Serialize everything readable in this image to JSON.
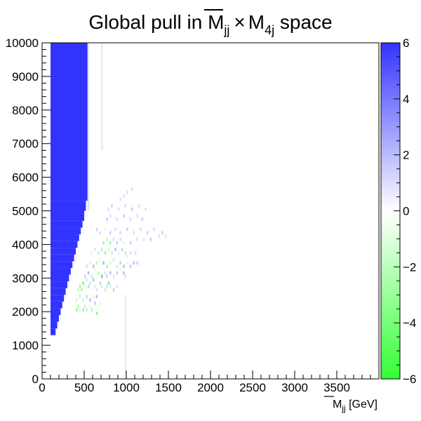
{
  "chart_data": {
    "type": "heatmap",
    "title": {
      "prefix": "Global pull in ",
      "mjj_main": "M",
      "mjj_sub": "jj",
      "times": "×",
      "m4j_main": "M",
      "m4j_sub": "4j",
      "suffix": " space"
    },
    "xlabel": {
      "main": "M",
      "sub": "jj",
      "unit": " [GeV]"
    },
    "ylabel": "",
    "xlim": [
      0,
      4000
    ],
    "ylim": [
      0,
      10000
    ],
    "x_ticks": [
      "0",
      "500",
      "1000",
      "1500",
      "2000",
      "2500",
      "3000",
      "3500"
    ],
    "x_tick_values": [
      0,
      500,
      1000,
      1500,
      2000,
      2500,
      3000,
      3500
    ],
    "y_ticks": [
      "0",
      "1000",
      "2000",
      "3000",
      "4000",
      "5000",
      "6000",
      "7000",
      "8000",
      "9000",
      "10000"
    ],
    "y_tick_values": [
      0,
      1000,
      2000,
      3000,
      4000,
      5000,
      6000,
      7000,
      8000,
      9000,
      10000
    ],
    "z_range": [
      -6,
      6
    ],
    "z_ticks": [
      "6",
      "4",
      "2",
      "0",
      "−2",
      "−4",
      "−6"
    ],
    "z_tick_values": [
      6,
      4,
      2,
      0,
      -2,
      -4,
      -6
    ],
    "colorscale": [
      {
        "z": -6,
        "color": "#33ff33"
      },
      {
        "z": 0,
        "color": "#ffffff"
      },
      {
        "z": 6,
        "color": "#3333ff"
      }
    ],
    "bin_size": {
      "x": 20,
      "y": 100
    },
    "saturated_region": {
      "z": 6,
      "x_start": 100,
      "boundary": [
        {
          "y_from": 1300,
          "x_end": 160
        },
        {
          "y_from": 1500,
          "x_end": 180
        },
        {
          "y_from": 1700,
          "x_end": 200
        },
        {
          "y_from": 1900,
          "x_end": 220
        },
        {
          "y_from": 2100,
          "x_end": 240
        },
        {
          "y_from": 2300,
          "x_end": 260
        },
        {
          "y_from": 2500,
          "x_end": 280
        },
        {
          "y_from": 2700,
          "x_end": 300
        },
        {
          "y_from": 2900,
          "x_end": 320
        },
        {
          "y_from": 3100,
          "x_end": 340
        },
        {
          "y_from": 3300,
          "x_end": 360
        },
        {
          "y_from": 3500,
          "x_end": 380
        },
        {
          "y_from": 3700,
          "x_end": 400
        },
        {
          "y_from": 3900,
          "x_end": 420
        },
        {
          "y_from": 4100,
          "x_end": 440
        },
        {
          "y_from": 4300,
          "x_end": 460
        },
        {
          "y_from": 4500,
          "x_end": 480
        },
        {
          "y_from": 4700,
          "x_end": 500
        },
        {
          "y_from": 5000,
          "x_end": 520
        },
        {
          "y_from": 5300,
          "x_end": 540
        },
        {
          "y_from": 10000,
          "x_end": 540
        }
      ]
    },
    "faint_bands": [
      {
        "x0": 540,
        "x1": 560,
        "y0": 5000,
        "y1": 10000,
        "z": 0.8
      },
      {
        "x0": 700,
        "x1": 720,
        "y0": 6800,
        "y1": 10000,
        "z": 0.7
      },
      {
        "x0": 980,
        "x1": 1000,
        "y0": 0,
        "y1": 2500,
        "z": 0.6
      }
    ],
    "cells": [
      {
        "x": 400,
        "y": 2000,
        "z": -3.5
      },
      {
        "x": 420,
        "y": 2100,
        "z": -2.5
      },
      {
        "x": 440,
        "y": 2000,
        "z": -1.5
      },
      {
        "x": 480,
        "y": 2000,
        "z": -3
      },
      {
        "x": 500,
        "y": 2100,
        "z": -2
      },
      {
        "x": 520,
        "y": 2000,
        "z": 1
      },
      {
        "x": 560,
        "y": 2100,
        "z": -1
      },
      {
        "x": 580,
        "y": 2000,
        "z": -2.5
      },
      {
        "x": 640,
        "y": 1900,
        "z": -3.5
      },
      {
        "x": 620,
        "y": 2200,
        "z": 1.5
      },
      {
        "x": 680,
        "y": 2200,
        "z": -1
      },
      {
        "x": 400,
        "y": 2300,
        "z": -1.5
      },
      {
        "x": 440,
        "y": 2400,
        "z": 1
      },
      {
        "x": 480,
        "y": 2300,
        "z": -2
      },
      {
        "x": 520,
        "y": 2400,
        "z": 1.5
      },
      {
        "x": 560,
        "y": 2300,
        "z": 2
      },
      {
        "x": 600,
        "y": 2400,
        "z": -1
      },
      {
        "x": 640,
        "y": 2400,
        "z": 2
      },
      {
        "x": 420,
        "y": 2600,
        "z": -2
      },
      {
        "x": 440,
        "y": 2700,
        "z": -3
      },
      {
        "x": 460,
        "y": 2600,
        "z": -2.5
      },
      {
        "x": 480,
        "y": 2800,
        "z": -4
      },
      {
        "x": 500,
        "y": 2700,
        "z": -1
      },
      {
        "x": 520,
        "y": 2900,
        "z": 1
      },
      {
        "x": 540,
        "y": 2700,
        "z": 1.5
      },
      {
        "x": 560,
        "y": 2800,
        "z": -2
      },
      {
        "x": 600,
        "y": 2900,
        "z": 2
      },
      {
        "x": 620,
        "y": 2700,
        "z": -1.5
      },
      {
        "x": 640,
        "y": 2600,
        "z": 1
      },
      {
        "x": 680,
        "y": 2800,
        "z": 1.5
      },
      {
        "x": 700,
        "y": 2700,
        "z": -2
      },
      {
        "x": 740,
        "y": 2600,
        "z": 1
      },
      {
        "x": 760,
        "y": 2700,
        "z": -2.5
      },
      {
        "x": 780,
        "y": 2800,
        "z": 2
      },
      {
        "x": 800,
        "y": 2700,
        "z": -1.5
      },
      {
        "x": 840,
        "y": 2600,
        "z": 1.5
      },
      {
        "x": 880,
        "y": 2700,
        "z": 1
      },
      {
        "x": 500,
        "y": 3000,
        "z": 1.5
      },
      {
        "x": 540,
        "y": 3100,
        "z": 2
      },
      {
        "x": 580,
        "y": 3000,
        "z": -2
      },
      {
        "x": 620,
        "y": 3200,
        "z": -1
      },
      {
        "x": 660,
        "y": 3100,
        "z": -2.5
      },
      {
        "x": 700,
        "y": 3000,
        "z": 2.5
      },
      {
        "x": 740,
        "y": 3100,
        "z": 1
      },
      {
        "x": 760,
        "y": 3000,
        "z": -3
      },
      {
        "x": 800,
        "y": 3100,
        "z": 2
      },
      {
        "x": 840,
        "y": 3000,
        "z": -2
      },
      {
        "x": 880,
        "y": 3100,
        "z": 1.5
      },
      {
        "x": 920,
        "y": 3200,
        "z": -1
      },
      {
        "x": 960,
        "y": 3100,
        "z": 2
      },
      {
        "x": 980,
        "y": 3000,
        "z": 1
      },
      {
        "x": 520,
        "y": 3300,
        "z": 1
      },
      {
        "x": 560,
        "y": 3400,
        "z": -1.5
      },
      {
        "x": 600,
        "y": 3300,
        "z": 2
      },
      {
        "x": 640,
        "y": 3400,
        "z": -2
      },
      {
        "x": 680,
        "y": 3500,
        "z": -1
      },
      {
        "x": 720,
        "y": 3400,
        "z": 2.5
      },
      {
        "x": 760,
        "y": 3300,
        "z": -3
      },
      {
        "x": 800,
        "y": 3400,
        "z": -1.5
      },
      {
        "x": 840,
        "y": 3500,
        "z": 1
      },
      {
        "x": 880,
        "y": 3300,
        "z": -2
      },
      {
        "x": 920,
        "y": 3400,
        "z": 1.5
      },
      {
        "x": 960,
        "y": 3300,
        "z": 2
      },
      {
        "x": 1000,
        "y": 3400,
        "z": -1
      },
      {
        "x": 1040,
        "y": 3300,
        "z": 1.5
      },
      {
        "x": 1080,
        "y": 3400,
        "z": 2
      },
      {
        "x": 1120,
        "y": 3400,
        "z": 1.5
      },
      {
        "x": 580,
        "y": 3700,
        "z": -1
      },
      {
        "x": 620,
        "y": 3800,
        "z": -2
      },
      {
        "x": 660,
        "y": 3700,
        "z": 1
      },
      {
        "x": 700,
        "y": 3800,
        "z": -2.5
      },
      {
        "x": 740,
        "y": 3700,
        "z": -3
      },
      {
        "x": 780,
        "y": 3800,
        "z": -1.5
      },
      {
        "x": 820,
        "y": 3700,
        "z": 1
      },
      {
        "x": 860,
        "y": 3800,
        "z": 2
      },
      {
        "x": 900,
        "y": 3700,
        "z": -1
      },
      {
        "x": 940,
        "y": 3800,
        "z": 1.5
      },
      {
        "x": 980,
        "y": 3700,
        "z": 1
      },
      {
        "x": 1000,
        "y": 3600,
        "z": -1.5
      },
      {
        "x": 1040,
        "y": 3700,
        "z": 1
      },
      {
        "x": 1100,
        "y": 3700,
        "z": 1
      },
      {
        "x": 720,
        "y": 4000,
        "z": -3
      },
      {
        "x": 760,
        "y": 4100,
        "z": -2
      },
      {
        "x": 800,
        "y": 4000,
        "z": -3
      },
      {
        "x": 840,
        "y": 4100,
        "z": 1
      },
      {
        "x": 880,
        "y": 4000,
        "z": 1.5
      },
      {
        "x": 920,
        "y": 4100,
        "z": 1
      },
      {
        "x": 960,
        "y": 4000,
        "z": -1
      },
      {
        "x": 1040,
        "y": 4000,
        "z": 1.5
      },
      {
        "x": 1120,
        "y": 4100,
        "z": 1
      },
      {
        "x": 1200,
        "y": 4100,
        "z": 1
      },
      {
        "x": 1280,
        "y": 4100,
        "z": 1.5
      },
      {
        "x": 1380,
        "y": 4200,
        "z": 1
      },
      {
        "x": 1420,
        "y": 4300,
        "z": 1.5
      },
      {
        "x": 1460,
        "y": 4200,
        "z": 1
      },
      {
        "x": 640,
        "y": 4400,
        "z": 1.5
      },
      {
        "x": 680,
        "y": 4300,
        "z": 1
      },
      {
        "x": 740,
        "y": 4400,
        "z": -1
      },
      {
        "x": 800,
        "y": 4300,
        "z": 1.5
      },
      {
        "x": 860,
        "y": 4400,
        "z": 1
      },
      {
        "x": 920,
        "y": 4300,
        "z": 1
      },
      {
        "x": 1000,
        "y": 4400,
        "z": 1.5
      },
      {
        "x": 1080,
        "y": 4300,
        "z": 1
      },
      {
        "x": 1160,
        "y": 4400,
        "z": 1
      },
      {
        "x": 1240,
        "y": 4300,
        "z": 1.5
      },
      {
        "x": 1320,
        "y": 4400,
        "z": 1
      },
      {
        "x": 760,
        "y": 4700,
        "z": 1.5
      },
      {
        "x": 800,
        "y": 4800,
        "z": 1
      },
      {
        "x": 880,
        "y": 4700,
        "z": 1
      },
      {
        "x": 960,
        "y": 4800,
        "z": 1.5
      },
      {
        "x": 1040,
        "y": 4700,
        "z": 1
      },
      {
        "x": 1120,
        "y": 4800,
        "z": 1
      },
      {
        "x": 1180,
        "y": 4700,
        "z": 1.5
      },
      {
        "x": 780,
        "y": 5000,
        "z": 1
      },
      {
        "x": 820,
        "y": 5100,
        "z": 1.5
      },
      {
        "x": 900,
        "y": 5000,
        "z": 1
      },
      {
        "x": 980,
        "y": 5100,
        "z": 1
      },
      {
        "x": 1060,
        "y": 5000,
        "z": 1.5
      },
      {
        "x": 1140,
        "y": 5100,
        "z": 1
      },
      {
        "x": 1220,
        "y": 5000,
        "z": 1
      },
      {
        "x": 920,
        "y": 5300,
        "z": 1
      },
      {
        "x": 960,
        "y": 5400,
        "z": 1
      },
      {
        "x": 1000,
        "y": 5500,
        "z": 1
      },
      {
        "x": 1060,
        "y": 5600,
        "z": 1
      }
    ]
  }
}
